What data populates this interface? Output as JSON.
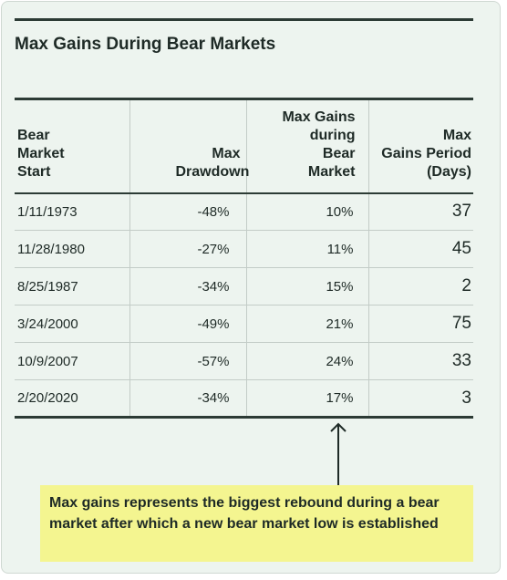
{
  "title": "Max Gains During Bear Markets",
  "chart_data": {
    "type": "table",
    "title": "Max Gains During Bear Markets",
    "columns": [
      [
        "Bear",
        "Market",
        "Start"
      ],
      [
        "Max",
        "Drawdown"
      ],
      [
        "Max Gains",
        "during",
        "Bear",
        "Market"
      ],
      [
        "Max",
        "Gains Period",
        "(Days)"
      ]
    ],
    "rows": [
      {
        "start": "1/11/1973",
        "drawdown": "-48%",
        "max_gain": "10%",
        "days": "37"
      },
      {
        "start": "11/28/1980",
        "drawdown": "-27%",
        "max_gain": "11%",
        "days": "45"
      },
      {
        "start": "8/25/1987",
        "drawdown": "-34%",
        "max_gain": "15%",
        "days": "2"
      },
      {
        "start": "3/24/2000",
        "drawdown": "-49%",
        "max_gain": "21%",
        "days": "75"
      },
      {
        "start": "10/9/2007",
        "drawdown": "-57%",
        "max_gain": "24%",
        "days": "33"
      },
      {
        "start": "2/20/2020",
        "drawdown": "-34%",
        "max_gain": "17%",
        "days": "3"
      }
    ],
    "annotation": "Max gains represents the biggest rebound during a bear market after which a new bear market low is established"
  },
  "colors": {
    "background": "#edf4ef",
    "rule": "#2c3b35",
    "note_background": "#f4f590"
  }
}
